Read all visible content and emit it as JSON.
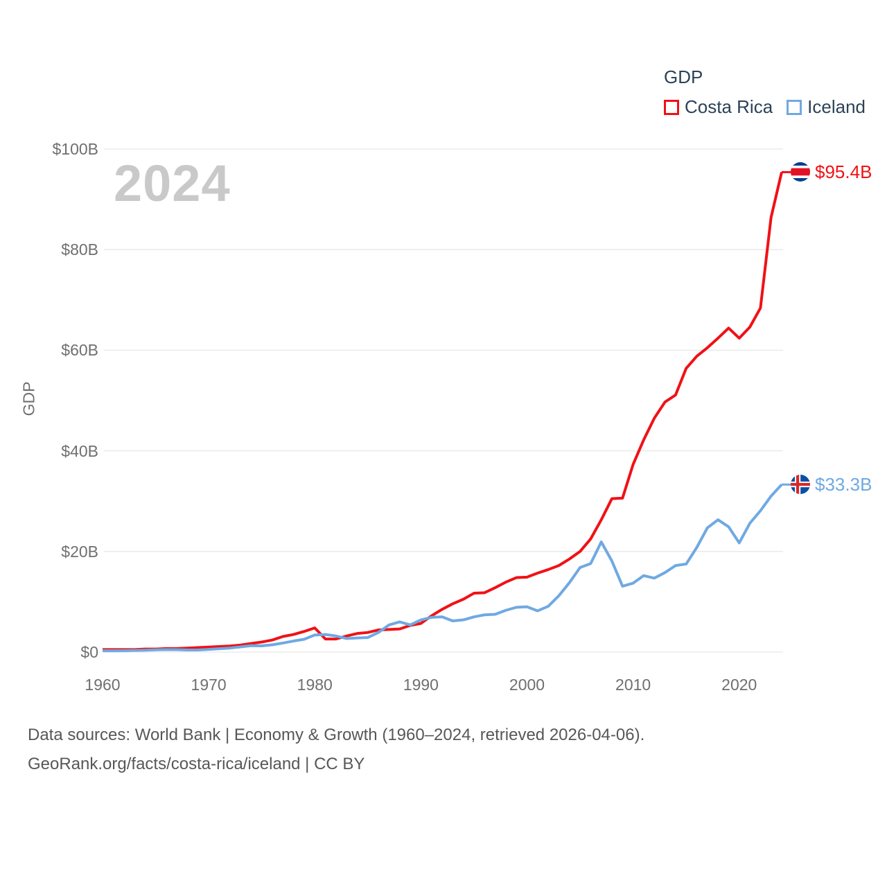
{
  "watermark": "2024",
  "legend": {
    "title": "GDP",
    "series": [
      {
        "label": "Costa Rica",
        "color": "#f01116"
      },
      {
        "label": "Iceland",
        "color": "#6fa9e2"
      }
    ]
  },
  "y_axis": {
    "title": "GDP",
    "ticks": [
      "$0",
      "$20B",
      "$40B",
      "$60B",
      "$80B",
      "$100B"
    ]
  },
  "x_axis": {
    "ticks": [
      "1960",
      "1970",
      "1980",
      "1990",
      "2000",
      "2010",
      "2020"
    ]
  },
  "end_labels": [
    {
      "series": "Costa Rica",
      "value": "$95.4B"
    },
    {
      "series": "Iceland",
      "value": "$33.3B"
    }
  ],
  "footer": {
    "line1": "Data sources: World Bank | Economy & Growth (1960–2024, retrieved 2026-04-06).",
    "line2": "GeoRank.org/facts/costa-rica/iceland | CC BY"
  },
  "colors": {
    "costa_rica": "#f01116",
    "iceland": "#6fa9e2",
    "gridline": "#ebebeb",
    "axis_text": "#6f6f6f",
    "legend_text": "#2c4257",
    "watermark": "#c9c9c9"
  },
  "chart_data": {
    "type": "line",
    "title": "GDP",
    "ylabel": "GDP",
    "xlabel": "",
    "ylim": [
      0,
      100
    ],
    "xlim": [
      1960,
      2024
    ],
    "y_tick_step": 20,
    "grid": "horizontal",
    "legend_position": "top-right",
    "x": [
      1960,
      1961,
      1962,
      1963,
      1964,
      1965,
      1966,
      1967,
      1968,
      1969,
      1970,
      1971,
      1972,
      1973,
      1974,
      1975,
      1976,
      1977,
      1978,
      1979,
      1980,
      1981,
      1982,
      1983,
      1984,
      1985,
      1986,
      1987,
      1988,
      1989,
      1990,
      1991,
      1992,
      1993,
      1994,
      1995,
      1996,
      1997,
      1998,
      1999,
      2000,
      2001,
      2002,
      2003,
      2004,
      2005,
      2006,
      2007,
      2008,
      2009,
      2010,
      2011,
      2012,
      2013,
      2014,
      2015,
      2016,
      2017,
      2018,
      2019,
      2020,
      2021,
      2022,
      2023,
      2024
    ],
    "series": [
      {
        "name": "Costa Rica",
        "color": "#f01116",
        "end_label": "$95.4B",
        "values": [
          0.5,
          0.5,
          0.5,
          0.5,
          0.6,
          0.6,
          0.7,
          0.7,
          0.8,
          0.9,
          1.0,
          1.1,
          1.2,
          1.4,
          1.7,
          2.0,
          2.4,
          3.1,
          3.5,
          4.1,
          4.8,
          2.6,
          2.6,
          3.2,
          3.7,
          3.9,
          4.4,
          4.5,
          4.6,
          5.3,
          5.7,
          7.2,
          8.5,
          9.6,
          10.5,
          11.7,
          11.8,
          12.8,
          13.9,
          14.8,
          14.9,
          15.7,
          16.4,
          17.2,
          18.5,
          20.0,
          22.5,
          26.3,
          30.5,
          30.6,
          37.3,
          42.2,
          46.5,
          49.7,
          51.1,
          56.4,
          58.8,
          60.5,
          62.4,
          64.4,
          62.4,
          64.6,
          68.4,
          86.4,
          95.4
        ]
      },
      {
        "name": "Iceland",
        "color": "#6fa9e2",
        "end_label": "$33.3B",
        "values": [
          0.25,
          0.25,
          0.28,
          0.32,
          0.37,
          0.44,
          0.5,
          0.48,
          0.41,
          0.41,
          0.54,
          0.67,
          0.8,
          1.03,
          1.28,
          1.24,
          1.45,
          1.8,
          2.2,
          2.55,
          3.4,
          3.5,
          3.2,
          2.7,
          2.8,
          2.9,
          3.9,
          5.4,
          6.0,
          5.4,
          6.4,
          6.9,
          7.0,
          6.2,
          6.4,
          7.0,
          7.4,
          7.5,
          8.3,
          8.9,
          9.0,
          8.2,
          9.1,
          11.2,
          13.8,
          16.8,
          17.6,
          21.9,
          18.1,
          13.1,
          13.7,
          15.2,
          14.7,
          15.8,
          17.2,
          17.5,
          20.8,
          24.7,
          26.3,
          24.9,
          21.7,
          25.6,
          28.1,
          31.0,
          33.3
        ]
      }
    ]
  }
}
